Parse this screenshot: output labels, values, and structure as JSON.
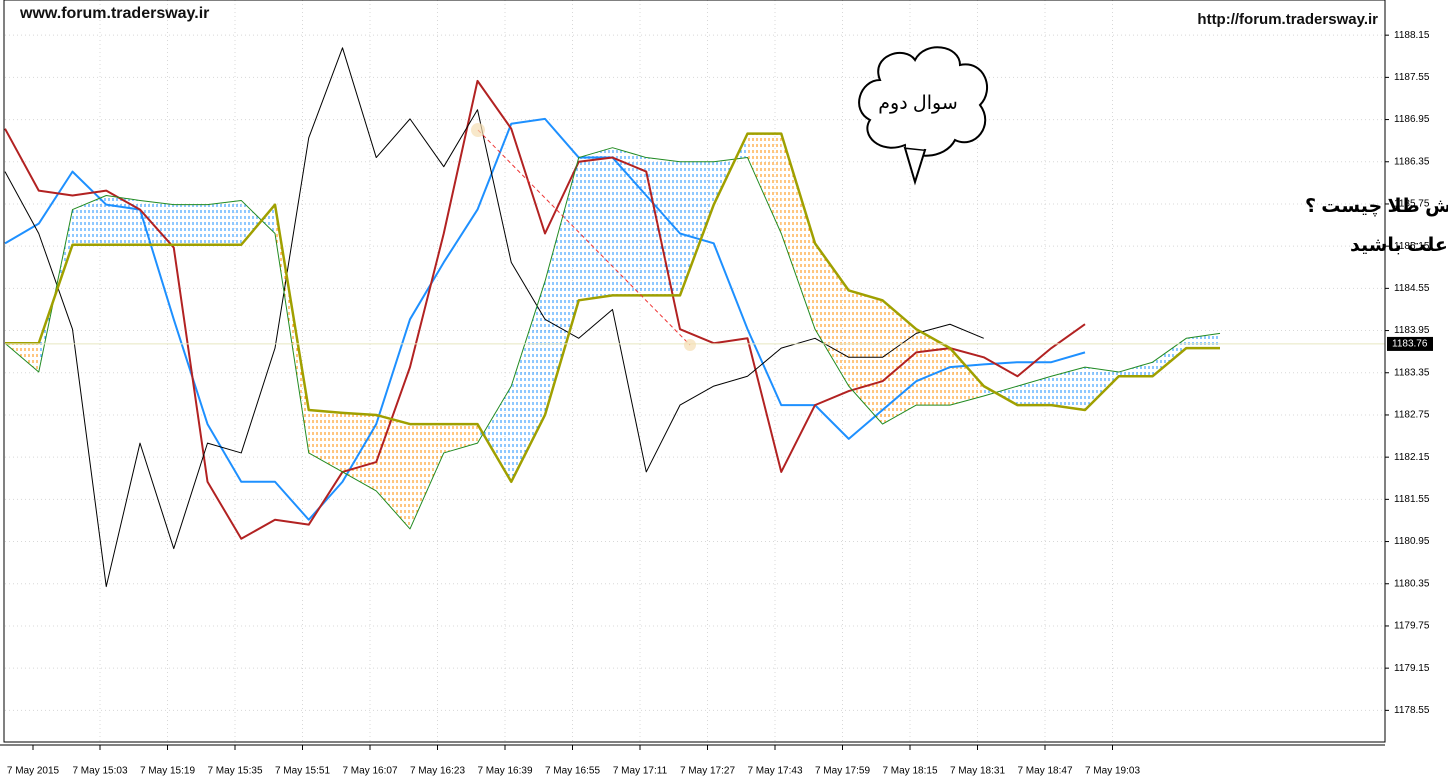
{
  "chart_data": {
    "type": "ichimoku",
    "site_left": "www.forum.tradersway.ir",
    "site_right": "http://forum.tradersway.ir",
    "bubble_text": "سوال دوم",
    "question": "دلیل ورود به معامله فروش طلا چیست ؟",
    "hint": "راهنمایی : با تغییر تایم فریم به دنبال علت باشید",
    "current_price": 1183.76,
    "current_price_color": "#000000",
    "time_labels": [
      "7 May 2015",
      "7 May 15:03",
      "7 May 15:19",
      "7 May 15:35",
      "7 May 15:51",
      "7 May 16:07",
      "7 May 16:23",
      "7 May 16:39",
      "7 May 16:55",
      "7 May 17:11",
      "7 May 17:27",
      "7 May 17:43",
      "7 May 17:59",
      "7 May 18:15",
      "7 May 18:31",
      "7 May 18:47",
      "7 May 19:03"
    ],
    "ylim": [
      1178.1,
      1188.65
    ],
    "yticks": [
      1188.15,
      1187.55,
      1186.95,
      1186.35,
      1185.75,
      1185.15,
      1184.55,
      1183.95,
      1183.35,
      1182.75,
      1182.15,
      1181.55,
      1180.95,
      1180.35,
      1179.75,
      1179.15,
      1178.55
    ],
    "grid": true,
    "cloud_colors": {
      "bullish": "#1e90ff",
      "bearish": "#ff8c00"
    },
    "series": [
      {
        "color": "#1e90ff",
        "values": [
          1185.19,
          1185.47,
          1186.21,
          1185.74,
          1185.67,
          1184.11,
          1182.62,
          1181.8,
          1181.8,
          1181.26,
          1181.8,
          1182.62,
          1184.11,
          1184.92,
          1185.67,
          1186.89,
          1186.96,
          1186.41,
          1186.41,
          1185.87,
          1185.33,
          1185.19,
          1183.97,
          1182.89,
          1182.89,
          1182.41,
          1182.82,
          1183.23,
          1183.43,
          1183.47,
          1183.5,
          1183.5,
          1183.64,
          null,
          null,
          null,
          null
        ]
      },
      {
        "color": "#b22222",
        "values": [
          1186.82,
          1185.94,
          1185.87,
          1185.94,
          1185.67,
          1185.13,
          1181.8,
          1180.99,
          1181.26,
          1181.19,
          1181.94,
          1182.08,
          1183.43,
          1185.33,
          1187.5,
          1186.82,
          1185.33,
          1186.35,
          1186.41,
          1186.21,
          1183.97,
          1183.77,
          1183.84,
          1181.94,
          1182.89,
          1183.09,
          1183.23,
          1183.64,
          1183.7,
          1183.57,
          1183.3,
          1183.7,
          1184.04,
          null,
          null,
          null,
          null
        ]
      },
      {
        "color": "#000000",
        "values": [
          1186.21,
          1185.33,
          1183.97,
          1180.31,
          1182.35,
          1180.85,
          1182.35,
          1182.21,
          1183.7,
          1186.69,
          1187.97,
          1186.41,
          1186.96,
          1186.28,
          1187.09,
          1184.92,
          1184.11,
          1183.84,
          1184.25,
          1181.94,
          1182.89,
          1183.16,
          1183.3,
          1183.7,
          1183.84,
          1183.57,
          1183.57,
          1183.91,
          1184.04,
          1183.84,
          null,
          null,
          null,
          null,
          null,
          null,
          null
        ]
      },
      {
        "color": "#228b22",
        "values": [
          1183.77,
          1183.36,
          1185.67,
          1185.87,
          1185.8,
          1185.74,
          1185.74,
          1185.8,
          1185.33,
          1182.21,
          1181.94,
          1181.67,
          1181.13,
          1182.21,
          1182.35,
          1183.16,
          1184.65,
          1186.41,
          1186.55,
          1186.41,
          1186.35,
          1186.35,
          1186.41,
          1185.33,
          1183.97,
          1183.16,
          1182.62,
          1182.89,
          1182.89,
          1183.02,
          1183.16,
          1183.3,
          1183.43,
          1183.36,
          1183.5,
          1183.84,
          1183.91
        ]
      },
      {
        "color": "#a0a000",
        "values": [
          1183.77,
          1183.77,
          1185.17,
          1185.17,
          1185.17,
          1185.17,
          1185.17,
          1185.17,
          1185.74,
          1182.82,
          1182.78,
          1182.75,
          1182.62,
          1182.62,
          1182.62,
          1181.8,
          1182.75,
          1184.38,
          1184.45,
          1184.45,
          1184.45,
          1185.74,
          1186.75,
          1186.75,
          1185.19,
          1184.52,
          1184.38,
          1183.97,
          1183.7,
          1183.16,
          1182.89,
          1182.89,
          1182.82,
          1183.3,
          1183.3,
          1183.7,
          1183.7
        ]
      }
    ]
  }
}
